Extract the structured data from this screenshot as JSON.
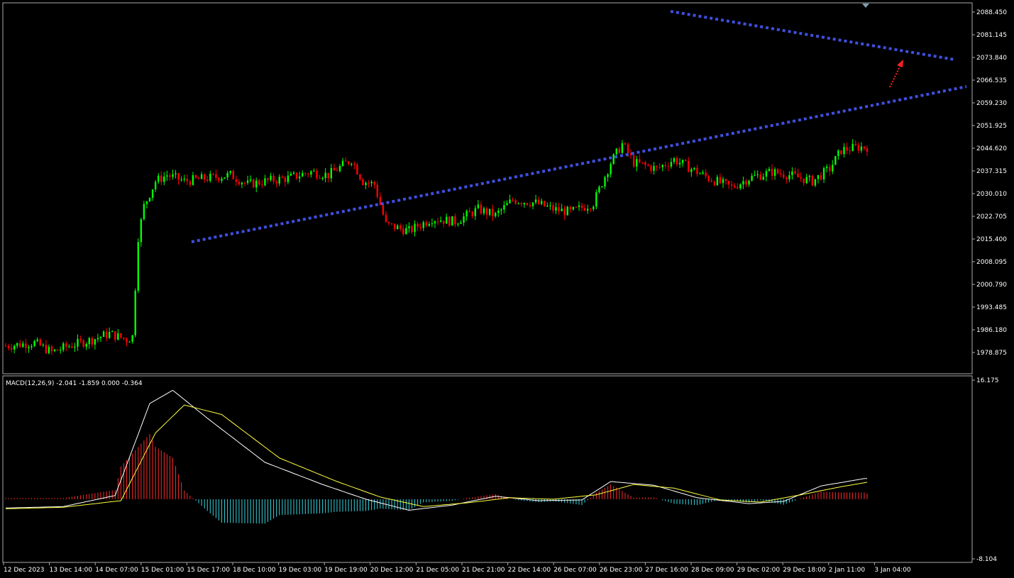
{
  "chart_data": [
    {
      "type": "candlestick",
      "name": "price",
      "ylim": [
        1972,
        2091
      ],
      "y_ticks": [
        "2088.450",
        "2081.145",
        "2073.840",
        "2066.535",
        "2059.230",
        "2051.925",
        "2044.620",
        "2037.315",
        "2030.010",
        "2022.705",
        "2015.400",
        "2008.095",
        "2000.790",
        "1993.485",
        "1986.180",
        "1978.875"
      ],
      "x_ticks": [
        "12 Dec 2023",
        "13 Dec 14:00",
        "14 Dec 07:00",
        "15 Dec 01:00",
        "15 Dec 17:00",
        "18 Dec 10:00",
        "19 Dec 03:00",
        "19 Dec 19:00",
        "20 Dec 12:00",
        "21 Dec 05:00",
        "21 Dec 21:00",
        "22 Dec 14:00",
        "26 Dec 07:00",
        "26 Dec 23:00",
        "27 Dec 16:00",
        "28 Dec 09:00",
        "29 Dec 02:00",
        "29 Dec 18:00",
        "2 Jan 11:00",
        "3 Jan 04:00"
      ],
      "bar_count": 300,
      "close_anchors": [
        [
          0,
          1981
        ],
        [
          10,
          1982
        ],
        [
          16,
          1979
        ],
        [
          22,
          1981
        ],
        [
          30,
          1983
        ],
        [
          36,
          1985
        ],
        [
          42,
          1983
        ],
        [
          44,
          1984
        ],
        [
          46,
          2016
        ],
        [
          48,
          2026
        ],
        [
          52,
          2034
        ],
        [
          56,
          2036
        ],
        [
          62,
          2034
        ],
        [
          70,
          2035
        ],
        [
          78,
          2036
        ],
        [
          84,
          2033
        ],
        [
          90,
          2034
        ],
        [
          98,
          2035
        ],
        [
          106,
          2037
        ],
        [
          112,
          2036
        ],
        [
          120,
          2041
        ],
        [
          124,
          2034
        ],
        [
          128,
          2033
        ],
        [
          132,
          2020
        ],
        [
          140,
          2018
        ],
        [
          148,
          2022
        ],
        [
          156,
          2021
        ],
        [
          164,
          2025
        ],
        [
          170,
          2023
        ],
        [
          176,
          2028
        ],
        [
          184,
          2027
        ],
        [
          190,
          2025
        ],
        [
          196,
          2024
        ],
        [
          204,
          2027
        ],
        [
          210,
          2040
        ],
        [
          214,
          2046
        ],
        [
          218,
          2040
        ],
        [
          226,
          2038
        ],
        [
          232,
          2041
        ],
        [
          238,
          2038
        ],
        [
          244,
          2035
        ],
        [
          252,
          2032
        ],
        [
          258,
          2035
        ],
        [
          266,
          2037
        ],
        [
          272,
          2036
        ],
        [
          280,
          2034
        ],
        [
          286,
          2038
        ],
        [
          290,
          2044
        ],
        [
          296,
          2045
        ]
      ],
      "annotations": [
        "upper-trendline",
        "lower-trendline",
        "breakout-arrow"
      ],
      "colors": {
        "up": "#00ff00",
        "down": "#ff0000",
        "trendline": "#3f4fe0",
        "arrow": "#ff2020"
      }
    },
    {
      "type": "macd",
      "name": "MACD(12,26,9)",
      "legend_text": "MACD(12,26,9) -2.041 -1.859 0.000 -0.364",
      "ylim": [
        -8.104,
        16.175
      ],
      "y_ticks": [
        "16.175",
        "-8.104"
      ],
      "macd_anchors": [
        [
          0,
          -1.2
        ],
        [
          20,
          -1.0
        ],
        [
          38,
          0.5
        ],
        [
          50,
          13.0
        ],
        [
          58,
          14.8
        ],
        [
          70,
          11.0
        ],
        [
          90,
          5.0
        ],
        [
          110,
          2.0
        ],
        [
          125,
          0.0
        ],
        [
          140,
          -1.5
        ],
        [
          155,
          -0.8
        ],
        [
          170,
          0.4
        ],
        [
          185,
          -0.2
        ],
        [
          200,
          -0.1
        ],
        [
          210,
          2.4
        ],
        [
          225,
          1.9
        ],
        [
          240,
          0.2
        ],
        [
          258,
          -0.6
        ],
        [
          270,
          -0.3
        ],
        [
          283,
          1.8
        ],
        [
          298,
          2.8
        ]
      ],
      "signal_anchors": [
        [
          0,
          -1.3
        ],
        [
          20,
          -1.1
        ],
        [
          40,
          -0.2
        ],
        [
          52,
          9.0
        ],
        [
          62,
          12.8
        ],
        [
          75,
          11.5
        ],
        [
          95,
          5.6
        ],
        [
          115,
          2.4
        ],
        [
          130,
          0.3
        ],
        [
          145,
          -1.0
        ],
        [
          160,
          -0.5
        ],
        [
          175,
          0.2
        ],
        [
          190,
          0.0
        ],
        [
          205,
          0.6
        ],
        [
          218,
          2.0
        ],
        [
          232,
          1.5
        ],
        [
          248,
          -0.1
        ],
        [
          262,
          -0.4
        ],
        [
          276,
          0.6
        ],
        [
          290,
          1.7
        ],
        [
          299,
          2.3
        ]
      ],
      "colors": {
        "macd_line": "#ffffff",
        "signal_line": "#ffff40",
        "hist_positive": "#ff2a2a",
        "hist_negative": "#33d6e0"
      }
    }
  ]
}
